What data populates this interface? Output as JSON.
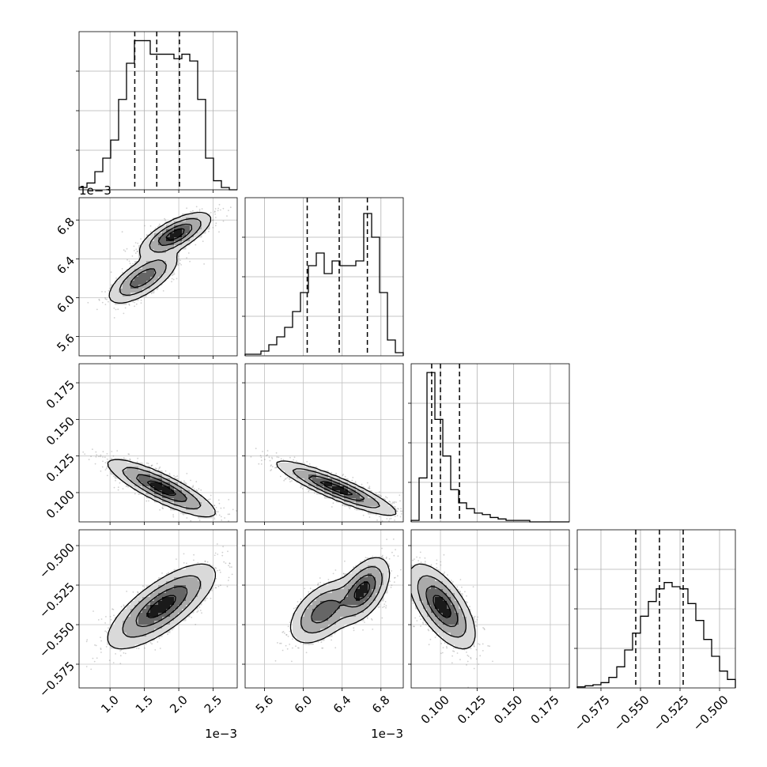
{
  "chart_data": {
    "type": "corner",
    "parameters": [
      {
        "range": [
          0.00055,
          0.00285
        ],
        "ticks": [
          {
            "v": 0.001,
            "label": "1.0"
          },
          {
            "v": 0.0015,
            "label": "1.5"
          },
          {
            "v": 0.002,
            "label": "2.0"
          },
          {
            "v": 0.0025,
            "label": "2.5"
          }
        ],
        "offset_label": "1e−3",
        "quantiles": [
          0.00136,
          0.00168,
          0.00201
        ]
      },
      {
        "range": [
          0.0054,
          0.00703
        ],
        "ticks": [
          {
            "v": 0.0056,
            "label": "5.6"
          },
          {
            "v": 0.006,
            "label": "6.0"
          },
          {
            "v": 0.0064,
            "label": "6.4"
          },
          {
            "v": 0.0068,
            "label": "6.8"
          }
        ],
        "offset_label": "1e−3",
        "quantiles": [
          0.00604,
          0.00637,
          0.00666
        ]
      },
      {
        "range": [
          0.08,
          0.188
        ],
        "ticks": [
          {
            "v": 0.1,
            "label": "0.100"
          },
          {
            "v": 0.125,
            "label": "0.125"
          },
          {
            "v": 0.15,
            "label": "0.150"
          },
          {
            "v": 0.175,
            "label": "0.175"
          }
        ],
        "offset_label": "",
        "quantiles": [
          0.094,
          0.1,
          0.113
        ]
      },
      {
        "range": [
          -0.59,
          -0.49
        ],
        "ticks": [
          {
            "v": -0.575,
            "label": "−0.575"
          },
          {
            "v": -0.55,
            "label": "−0.550"
          },
          {
            "v": -0.525,
            "label": "−0.525"
          },
          {
            "v": -0.5,
            "label": "−0.500"
          }
        ],
        "offset_label": "",
        "quantiles": [
          -0.553,
          -0.538,
          -0.523
        ]
      }
    ],
    "histograms": [
      {
        "counts": [
          1,
          3,
          8,
          14,
          22,
          40,
          56,
          66,
          66,
          60,
          60,
          60,
          58,
          60,
          57,
          40,
          14,
          4,
          1,
          0
        ],
        "max": 70
      },
      {
        "counts": [
          1,
          1,
          3,
          7,
          12,
          18,
          28,
          40,
          57,
          65,
          52,
          60,
          57,
          57,
          60,
          90,
          75,
          40,
          10,
          2
        ],
        "max": 100
      },
      {
        "counts": [
          1,
          30,
          102,
          70,
          45,
          22,
          13,
          9,
          6,
          5,
          3,
          2,
          1,
          1,
          1,
          0,
          0,
          0,
          0,
          0
        ],
        "max": 108
      },
      {
        "counts": [
          1,
          2,
          3,
          5,
          10,
          20,
          36,
          52,
          68,
          82,
          94,
          100,
          96,
          94,
          80,
          64,
          46,
          30,
          16,
          8
        ],
        "max": 150
      }
    ],
    "pairs": [
      {
        "row": 1,
        "col": 0,
        "seed": 11,
        "components": [
          {
            "w": 0.45,
            "mean": [
              0.00148,
              0.0062
            ],
            "sd": [
              0.00025,
              0.00013
            ],
            "rho": 0.7
          },
          {
            "w": 0.55,
            "mean": [
              0.00195,
              0.00665
            ],
            "sd": [
              0.00025,
              0.00011
            ],
            "rho": 0.7
          }
        ]
      },
      {
        "row": 2,
        "col": 0,
        "seed": 23,
        "components": [
          {
            "w": 1.0,
            "mean": [
              0.00175,
              0.103
            ],
            "sd": [
              0.00038,
              0.0095
            ],
            "rho": -0.85
          }
        ]
      },
      {
        "row": 2,
        "col": 1,
        "seed": 37,
        "components": [
          {
            "w": 1.0,
            "mean": [
              0.00634,
              0.103
            ],
            "sd": [
              0.0003,
              0.009
            ],
            "rho": -0.9
          }
        ]
      },
      {
        "row": 3,
        "col": 0,
        "seed": 41,
        "components": [
          {
            "w": 1.0,
            "mean": [
              0.00175,
              -0.5385
            ],
            "sd": [
              0.00038,
              0.013
            ],
            "rho": 0.75
          }
        ]
      },
      {
        "row": 3,
        "col": 1,
        "seed": 53,
        "components": [
          {
            "w": 0.45,
            "mean": [
              0.0062,
              -0.542
            ],
            "sd": [
              0.00017,
              0.01
            ],
            "rho": 0.5
          },
          {
            "w": 0.55,
            "mean": [
              0.00662,
              -0.528
            ],
            "sd": [
              0.00013,
              0.01
            ],
            "rho": 0.5
          }
        ]
      },
      {
        "row": 3,
        "col": 2,
        "seed": 67,
        "components": [
          {
            "w": 1.0,
            "mean": [
              0.101,
              -0.5385
            ],
            "sd": [
              0.011,
              0.013
            ],
            "rho": -0.65
          }
        ]
      }
    ]
  }
}
